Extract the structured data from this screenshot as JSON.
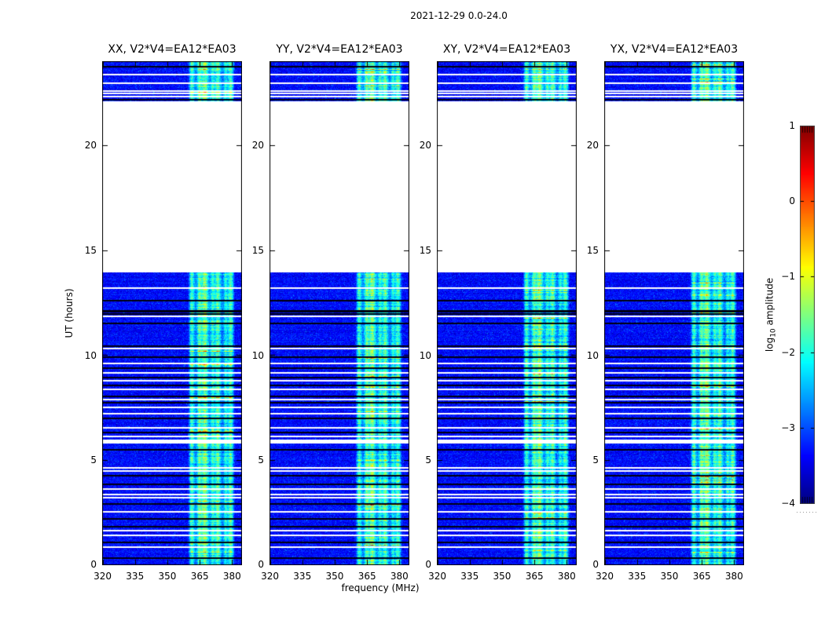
{
  "chart_data": {
    "type": "heatmap",
    "title": "2021-12-29 0.0-24.0",
    "xlabel": "frequency (MHz)",
    "ylabel": "UT (hours)",
    "xlim": [
      319.8,
      384.6
    ],
    "ylim": [
      0,
      24
    ],
    "x_ticks": [
      320,
      335,
      350,
      365,
      380
    ],
    "x_tick_labels": [
      "320",
      "335",
      "350",
      "365",
      "380"
    ],
    "y_ticks": [
      0,
      5,
      10,
      15,
      20
    ],
    "y_tick_labels": [
      "0",
      "5",
      "10",
      "15",
      "20"
    ],
    "baseline": "V2*V4=EA12*EA03",
    "panels": [
      {
        "polarization": "XX",
        "title": "XX, V2*V4=EA12*EA03"
      },
      {
        "polarization": "YY",
        "title": "YY, V2*V4=EA12*EA03"
      },
      {
        "polarization": "XY",
        "title": "XY, V2*V4=EA12*EA03"
      },
      {
        "polarization": "YX",
        "title": "YX, V2*V4=EA12*EA03"
      }
    ],
    "colorbar": {
      "label_prefix": "log",
      "label_sub": "10",
      "label_suffix": " amplitude",
      "colormap": "jet",
      "vmin": -4,
      "vmax": 1,
      "ticks": [
        1,
        0,
        -1,
        -2,
        -3,
        -4
      ],
      "tick_labels": [
        "1",
        "0",
        "−1",
        "−2",
        "−3",
        "−4"
      ]
    },
    "time_coverage_hours": [
      [
        0,
        13.93
      ],
      [
        22.08,
        24
      ]
    ],
    "noise_floor_log10": -3.35,
    "noise_sigma": 0.26,
    "rfi_band_mhz": [
      359.5,
      381.5
    ],
    "rfi_pedestal": 0.5,
    "rfi_stripes": [
      {
        "center_mhz": 361.4,
        "width_mhz": 1.1,
        "strength": 1.0
      },
      {
        "center_mhz": 364.8,
        "width_mhz": 1.0,
        "strength": 1.1
      },
      {
        "center_mhz": 367.4,
        "width_mhz": 1.6,
        "strength": 1.35
      },
      {
        "center_mhz": 371.0,
        "width_mhz": 0.9,
        "strength": 0.9
      },
      {
        "center_mhz": 373.4,
        "width_mhz": 1.3,
        "strength": 1.15
      },
      {
        "center_mhz": 377.0,
        "width_mhz": 0.8,
        "strength": 0.8
      },
      {
        "center_mhz": 379.3,
        "width_mhz": 1.2,
        "strength": 1.05
      }
    ],
    "white_gap_rows_hours": [
      [
        23.35,
        2
      ],
      [
        22.95,
        2
      ],
      [
        22.57,
        2
      ],
      [
        22.45,
        2
      ],
      [
        22.33,
        2
      ],
      [
        13.2,
        2
      ],
      [
        11.85,
        2
      ],
      [
        10.3,
        2
      ],
      [
        9.62,
        2
      ],
      [
        9.15,
        2
      ],
      [
        8.78,
        2
      ],
      [
        8.38,
        2
      ],
      [
        7.88,
        2
      ],
      [
        7.52,
        2
      ],
      [
        7.22,
        2
      ],
      [
        6.56,
        2
      ],
      [
        6.12,
        2
      ],
      [
        5.95,
        3
      ],
      [
        5.84,
        2
      ],
      [
        4.62,
        2
      ],
      [
        4.48,
        2
      ],
      [
        3.62,
        2
      ],
      [
        3.38,
        2
      ],
      [
        3.22,
        2
      ],
      [
        2.55,
        2
      ],
      [
        1.65,
        2
      ],
      [
        1.42,
        2
      ],
      [
        0.85,
        2
      ]
    ],
    "flagged_rows_hours": [
      [
        23.75,
        2
      ],
      [
        22.15,
        2
      ],
      [
        12.6,
        2
      ],
      [
        12.12,
        3
      ],
      [
        11.97,
        2
      ],
      [
        11.5,
        2
      ],
      [
        10.42,
        2
      ],
      [
        9.9,
        2
      ],
      [
        9.38,
        2
      ],
      [
        8.95,
        2
      ],
      [
        8.55,
        2
      ],
      [
        8.02,
        2
      ],
      [
        7.75,
        2
      ],
      [
        7.0,
        2
      ],
      [
        6.3,
        2
      ],
      [
        5.5,
        2
      ],
      [
        4.25,
        2
      ],
      [
        3.85,
        2
      ],
      [
        2.9,
        2
      ],
      [
        2.2,
        2
      ],
      [
        1.85,
        2
      ],
      [
        1.1,
        2
      ],
      [
        0.35,
        2
      ]
    ],
    "colors": {
      "noise_background": "#0010d0",
      "rfi_bright": "#40e0c0",
      "flagged_row": "#000010",
      "gap_row": "#ffffff",
      "axes": "#000000"
    }
  }
}
